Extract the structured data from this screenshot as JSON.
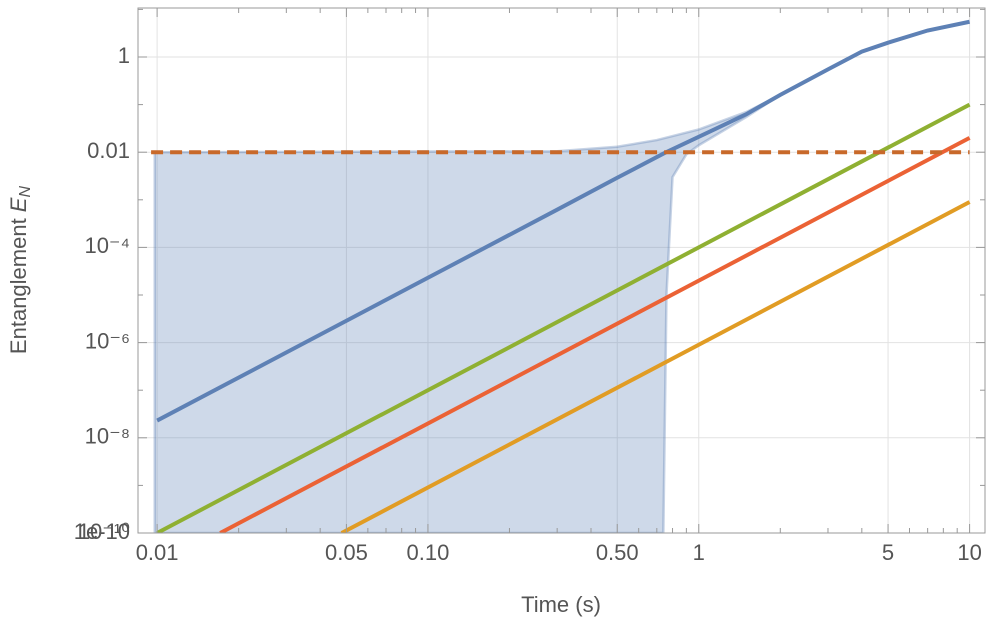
{
  "chart_data": {
    "type": "line",
    "xlabel": "Time (s)",
    "ylabel": {
      "text": "Entanglement ",
      "symbol": "E",
      "subscript": "N"
    },
    "xscale": "log",
    "yscale": "log",
    "grid": true,
    "xlim": [
      0.0085,
      11.4
    ],
    "ylim": [
      1e-10,
      10.7
    ],
    "xticks": [
      0.01,
      0.05,
      {
        "value": 0.1,
        "label": "0.10"
      },
      {
        "value": 0.5,
        "label": "0.50"
      },
      1,
      5,
      10
    ],
    "xminorticks": [
      0.02,
      0.03,
      0.04,
      0.06,
      0.07,
      0.08,
      0.09,
      0.2,
      0.3,
      0.4,
      0.6,
      0.7,
      0.8,
      0.9,
      2,
      3,
      4,
      6,
      7,
      8,
      9
    ],
    "yticks": [
      1e-10,
      {
        "value": 1e-10,
        "label": "10⁻¹⁰"
      },
      {
        "value": 1e-08,
        "label": "10⁻⁸"
      },
      {
        "value": 1e-06,
        "label": "10⁻⁶"
      },
      {
        "value": 0.0001,
        "label": "10⁻⁴"
      },
      0.01,
      1
    ],
    "yminorticks": [
      1e-09,
      1e-07,
      1e-05,
      0.001,
      0.1,
      10
    ],
    "band": {
      "color": "#5e81b5",
      "upper": {
        "x": [
          0.0098,
          0.3,
          0.5,
          0.7,
          1,
          1.5,
          2
        ],
        "values": [
          0.01,
          0.0105,
          0.013,
          0.018,
          0.03,
          0.07,
          0.16
        ]
      },
      "lower": {
        "x": [
          0.0098,
          0.74,
          0.76,
          0.8,
          0.9,
          1,
          1.5,
          2
        ],
        "values": [
          1e-10,
          1e-10,
          1e-05,
          0.003,
          0.009,
          0.014,
          0.055,
          0.16
        ]
      }
    },
    "series": [
      {
        "color": "#5e81b5",
        "style": "solid",
        "x": [
          0.01,
          0.1,
          0.3,
          0.5,
          0.75,
          1,
          1.5,
          2,
          3,
          4,
          5,
          7,
          10
        ],
        "values": [
          2.3e-08,
          2.3e-05,
          0.00062,
          0.0029,
          0.0097,
          0.021,
          0.063,
          0.16,
          0.55,
          1.3,
          2.0,
          3.6,
          5.5
        ]
      },
      {
        "color": "#8fb032",
        "style": "solid",
        "x": [
          0.01,
          10
        ],
        "values": [
          1e-10,
          0.1
        ]
      },
      {
        "color": "#eb6235",
        "style": "solid",
        "x": [
          0.0171,
          10
        ],
        "values": [
          1e-10,
          0.02
        ]
      },
      {
        "color": "#e19c24",
        "style": "solid",
        "x": [
          0.048,
          10
        ],
        "values": [
          1e-10,
          0.0009
        ]
      },
      {
        "color": "#c8692a",
        "style": "dashed",
        "x": [
          0.0095,
          10
        ],
        "values": [
          0.01,
          0.01
        ]
      }
    ]
  }
}
